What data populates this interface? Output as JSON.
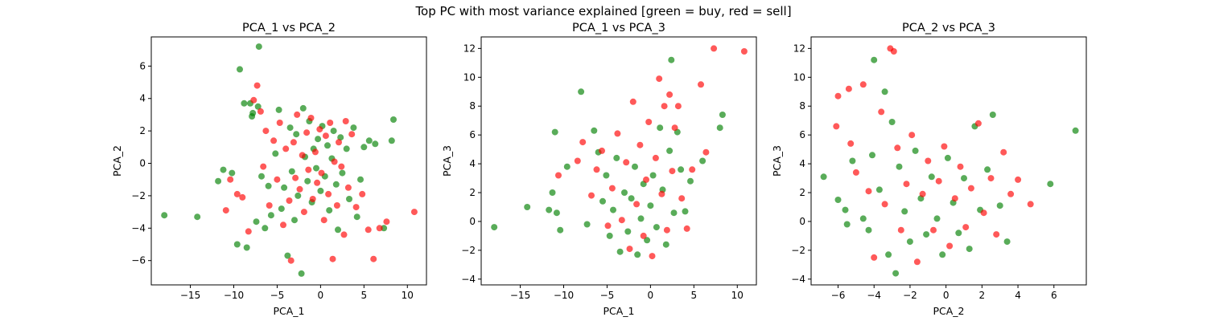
{
  "figure": {
    "suptitle": "Top PC with most variance explained [green = buy, red = sell]"
  },
  "colors": {
    "buy": "#008000",
    "sell": "#ff0000"
  },
  "chart_data": [
    {
      "type": "scatter",
      "title": "PCA_1 vs PCA_2",
      "xlabel": "PCA_1",
      "ylabel": "PCA_2",
      "xlim": [
        -19.5,
        12.2
      ],
      "ylim": [
        -7.5,
        7.8
      ],
      "xticks": [
        -15,
        -10,
        -5,
        0,
        5,
        10
      ],
      "yticks": [
        -6,
        -4,
        -2,
        0,
        2,
        4,
        6
      ],
      "grid": false,
      "series": [
        {
          "color": "#008000",
          "points": [
            [
              -18,
              -3.2
            ],
            [
              -14.2,
              -3.3
            ],
            [
              -11.2,
              -0.4
            ],
            [
              -11.8,
              -1.1
            ],
            [
              -10.2,
              -0.6
            ],
            [
              -9.6,
              -5.0
            ],
            [
              -9.3,
              5.8
            ],
            [
              -8.8,
              3.7
            ],
            [
              -8.1,
              3.7
            ],
            [
              -7.9,
              2.9
            ],
            [
              -7.8,
              3.1
            ],
            [
              -7.1,
              7.2
            ],
            [
              -7.2,
              3.5
            ],
            [
              -6.8,
              -0.8
            ],
            [
              -8.5,
              -5.2
            ],
            [
              -7.4,
              -3.6
            ],
            [
              -6.4,
              -4.0
            ],
            [
              -6.0,
              -1.4
            ],
            [
              -5.7,
              -3.2
            ],
            [
              -5.2,
              0.6
            ],
            [
              -4.8,
              3.3
            ],
            [
              -4.5,
              -2.8
            ],
            [
              -4.2,
              -1.5
            ],
            [
              -3.8,
              -5.7
            ],
            [
              -3.5,
              2.2
            ],
            [
              -3.3,
              -0.5
            ],
            [
              -3.0,
              -3.5
            ],
            [
              -2.8,
              1.8
            ],
            [
              -2.6,
              -2.0
            ],
            [
              -2.2,
              -6.8
            ],
            [
              -2.0,
              3.4
            ],
            [
              -1.8,
              0.4
            ],
            [
              -1.5,
              -1.1
            ],
            [
              -1.3,
              2.6
            ],
            [
              -1.0,
              -2.4
            ],
            [
              -0.8,
              0.9
            ],
            [
              -0.5,
              -0.3
            ],
            [
              -0.3,
              1.5
            ],
            [
              0.0,
              -1.7
            ],
            [
              0.2,
              2.3
            ],
            [
              0.5,
              -0.8
            ],
            [
              0.8,
              1.1
            ],
            [
              1.0,
              -2.9
            ],
            [
              1.3,
              0.3
            ],
            [
              1.5,
              2.0
            ],
            [
              1.8,
              -1.3
            ],
            [
              2.0,
              -4.1
            ],
            [
              2.3,
              1.6
            ],
            [
              2.5,
              -0.6
            ],
            [
              3.0,
              0.9
            ],
            [
              3.3,
              -2.2
            ],
            [
              3.8,
              2.2
            ],
            [
              4.2,
              -3.3
            ],
            [
              4.6,
              -1.0
            ],
            [
              5.0,
              1.0
            ],
            [
              5.6,
              1.4
            ],
            [
              6.3,
              1.2
            ],
            [
              7.3,
              -4.0
            ],
            [
              8.2,
              1.4
            ],
            [
              8.4,
              2.7
            ]
          ]
        },
        {
          "color": "#ff0000",
          "points": [
            [
              -10.9,
              -2.9
            ],
            [
              -10.4,
              -1.0
            ],
            [
              -9.6,
              -1.9
            ],
            [
              -9.0,
              -2.1
            ],
            [
              -8.3,
              -4.2
            ],
            [
              -7.7,
              3.9
            ],
            [
              -7.3,
              4.8
            ],
            [
              -6.9,
              3.2
            ],
            [
              -6.6,
              -0.2
            ],
            [
              -6.3,
              2.0
            ],
            [
              -5.9,
              -2.6
            ],
            [
              -5.4,
              1.4
            ],
            [
              -5.0,
              -1.0
            ],
            [
              -4.7,
              2.5
            ],
            [
              -4.3,
              -3.8
            ],
            [
              -4.0,
              0.9
            ],
            [
              -3.6,
              -2.3
            ],
            [
              -3.4,
              -6.0
            ],
            [
              -3.1,
              1.3
            ],
            [
              -2.9,
              -0.9
            ],
            [
              -2.7,
              3.0
            ],
            [
              -2.4,
              -1.6
            ],
            [
              -2.1,
              0.5
            ],
            [
              -1.9,
              -3.0
            ],
            [
              -1.6,
              1.9
            ],
            [
              -1.4,
              -0.4
            ],
            [
              -1.1,
              2.8
            ],
            [
              -0.9,
              -2.2
            ],
            [
              -0.6,
              0.7
            ],
            [
              -0.4,
              -1.2
            ],
            [
              -0.1,
              2.1
            ],
            [
              0.1,
              -0.6
            ],
            [
              0.4,
              -3.5
            ],
            [
              0.6,
              1.7
            ],
            [
              0.9,
              -1.9
            ],
            [
              1.1,
              2.5
            ],
            [
              1.4,
              -5.9
            ],
            [
              1.6,
              0.1
            ],
            [
              1.9,
              -2.6
            ],
            [
              2.1,
              1.3
            ],
            [
              2.4,
              -0.2
            ],
            [
              2.7,
              -4.4
            ],
            [
              2.9,
              2.6
            ],
            [
              3.2,
              -1.5
            ],
            [
              3.6,
              1.8
            ],
            [
              4.1,
              -2.7
            ],
            [
              4.8,
              -1.9
            ],
            [
              5.5,
              -4.1
            ],
            [
              6.1,
              -5.9
            ],
            [
              6.8,
              -4.0
            ],
            [
              7.6,
              -3.6
            ],
            [
              10.8,
              -3.0
            ]
          ]
        }
      ]
    },
    {
      "type": "scatter",
      "title": "PCA_1 vs PCA_3",
      "xlabel": "PCA_1",
      "ylabel": "PCA_3",
      "xlim": [
        -19.5,
        12.2
      ],
      "ylim": [
        -4.4,
        12.8
      ],
      "xticks": [
        -15,
        -10,
        -5,
        0,
        5,
        10
      ],
      "yticks": [
        -4,
        -2,
        0,
        2,
        4,
        6,
        8,
        10,
        12
      ],
      "grid": false,
      "series": [
        {
          "color": "#008000",
          "points": [
            [
              -18,
              -0.4
            ],
            [
              -14.2,
              1.0
            ],
            [
              -11.7,
              0.8
            ],
            [
              -11.3,
              2.0
            ],
            [
              -11.0,
              6.2
            ],
            [
              -10.8,
              0.6
            ],
            [
              -10.4,
              -0.6
            ],
            [
              -9.6,
              3.8
            ],
            [
              -8.0,
              9.0
            ],
            [
              -7.3,
              -0.2
            ],
            [
              -6.5,
              6.3
            ],
            [
              -6.0,
              4.8
            ],
            [
              -5.5,
              1.4
            ],
            [
              -5.1,
              3.2
            ],
            [
              -4.7,
              -1.0
            ],
            [
              -4.3,
              0.8
            ],
            [
              -3.9,
              4.4
            ],
            [
              -3.5,
              -2.1
            ],
            [
              -3.0,
              2.0
            ],
            [
              -2.6,
              -0.7
            ],
            [
              -2.2,
              1.6
            ],
            [
              -1.8,
              3.8
            ],
            [
              -1.5,
              -2.3
            ],
            [
              -1.1,
              0.2
            ],
            [
              -0.8,
              2.6
            ],
            [
              -0.4,
              -1.3
            ],
            [
              0.0,
              1.1
            ],
            [
              0.3,
              3.2
            ],
            [
              0.7,
              -0.4
            ],
            [
              1.1,
              6.5
            ],
            [
              1.4,
              2.2
            ],
            [
              1.8,
              -1.6
            ],
            [
              2.2,
              4.9
            ],
            [
              2.4,
              11.2
            ],
            [
              2.7,
              0.6
            ],
            [
              3.1,
              6.2
            ],
            [
              3.5,
              3.6
            ],
            [
              4.0,
              0.7
            ],
            [
              4.6,
              2.8
            ],
            [
              6.0,
              4.2
            ],
            [
              8.0,
              6.5
            ],
            [
              8.3,
              7.4
            ]
          ]
        },
        {
          "color": "#ff0000",
          "points": [
            [
              -10.6,
              3.2
            ],
            [
              -8.4,
              4.2
            ],
            [
              -7.8,
              5.5
            ],
            [
              -6.8,
              1.8
            ],
            [
              -6.2,
              3.6
            ],
            [
              -5.6,
              4.9
            ],
            [
              -4.9,
              -0.3
            ],
            [
              -4.4,
              2.3
            ],
            [
              -3.8,
              6.1
            ],
            [
              -3.3,
              0.1
            ],
            [
              -2.8,
              4.1
            ],
            [
              -2.4,
              -1.9
            ],
            [
              -2.0,
              8.3
            ],
            [
              -1.6,
              1.2
            ],
            [
              -1.2,
              5.3
            ],
            [
              -0.8,
              -1.0
            ],
            [
              -0.5,
              2.9
            ],
            [
              -0.2,
              6.9
            ],
            [
              0.2,
              -2.4
            ],
            [
              0.6,
              4.4
            ],
            [
              1.0,
              9.9
            ],
            [
              1.3,
              1.9
            ],
            [
              1.6,
              8.0
            ],
            [
              1.9,
              -0.6
            ],
            [
              2.2,
              8.8
            ],
            [
              2.5,
              3.5
            ],
            [
              2.8,
              6.5
            ],
            [
              3.2,
              8.0
            ],
            [
              3.6,
              1.6
            ],
            [
              4.2,
              -0.5
            ],
            [
              4.8,
              3.6
            ],
            [
              5.8,
              9.5
            ],
            [
              6.4,
              4.8
            ],
            [
              7.3,
              12.0
            ],
            [
              10.8,
              11.8
            ]
          ]
        }
      ]
    },
    {
      "type": "scatter",
      "title": "PCA_2 vs PCA_3",
      "xlabel": "PCA_2",
      "ylabel": "PCA_3",
      "xlim": [
        -7.5,
        7.8
      ],
      "ylim": [
        -4.4,
        12.8
      ],
      "xticks": [
        -6,
        -4,
        -2,
        0,
        2,
        4,
        6
      ],
      "yticks": [
        -4,
        -2,
        0,
        2,
        4,
        6,
        8,
        10,
        12
      ],
      "grid": false,
      "series": [
        {
          "color": "#008000",
          "points": [
            [
              -6.8,
              3.1
            ],
            [
              -6.0,
              1.5
            ],
            [
              -5.6,
              0.8
            ],
            [
              -5.5,
              -0.2
            ],
            [
              -5.2,
              4.2
            ],
            [
              -4.6,
              0.2
            ],
            [
              -4.3,
              -0.6
            ],
            [
              -4.1,
              4.6
            ],
            [
              -4.0,
              11.2
            ],
            [
              -3.7,
              2.2
            ],
            [
              -3.4,
              9.0
            ],
            [
              -3.2,
              -2.3
            ],
            [
              -3.0,
              6.9
            ],
            [
              -2.8,
              -3.6
            ],
            [
              -2.6,
              3.8
            ],
            [
              -2.3,
              0.7
            ],
            [
              -2.0,
              -1.4
            ],
            [
              -1.7,
              4.9
            ],
            [
              -1.4,
              1.6
            ],
            [
              -1.1,
              -0.9
            ],
            [
              -0.8,
              3.1
            ],
            [
              -0.5,
              0.2
            ],
            [
              -0.2,
              -2.3
            ],
            [
              0.1,
              4.4
            ],
            [
              0.4,
              1.3
            ],
            [
              0.7,
              -0.8
            ],
            [
              1.0,
              3.0
            ],
            [
              1.3,
              -1.9
            ],
            [
              1.6,
              6.6
            ],
            [
              1.9,
              0.8
            ],
            [
              2.3,
              3.6
            ],
            [
              2.6,
              7.4
            ],
            [
              3.0,
              1.1
            ],
            [
              3.4,
              -1.4
            ],
            [
              5.8,
              2.6
            ],
            [
              7.2,
              6.3
            ]
          ]
        },
        {
          "color": "#ff0000",
          "points": [
            [
              -6.1,
              6.6
            ],
            [
              -6.0,
              8.7
            ],
            [
              -5.4,
              9.2
            ],
            [
              -5.3,
              5.4
            ],
            [
              -5.0,
              3.4
            ],
            [
              -4.6,
              9.5
            ],
            [
              -4.3,
              2.1
            ],
            [
              -4.0,
              -2.5
            ],
            [
              -3.6,
              7.6
            ],
            [
              -3.4,
              1.2
            ],
            [
              -3.1,
              12.0
            ],
            [
              -2.9,
              11.8
            ],
            [
              -2.7,
              5.1
            ],
            [
              -2.5,
              -0.6
            ],
            [
              -2.2,
              2.6
            ],
            [
              -1.9,
              6.0
            ],
            [
              -1.6,
              -2.8
            ],
            [
              -1.3,
              1.9
            ],
            [
              -1.0,
              4.2
            ],
            [
              -0.7,
              -0.6
            ],
            [
              -0.4,
              2.8
            ],
            [
              -0.1,
              5.2
            ],
            [
              0.2,
              -1.7
            ],
            [
              0.5,
              1.6
            ],
            [
              0.8,
              3.8
            ],
            [
              1.1,
              -0.4
            ],
            [
              1.4,
              2.3
            ],
            [
              1.8,
              6.8
            ],
            [
              2.1,
              0.6
            ],
            [
              2.5,
              3.0
            ],
            [
              2.8,
              -0.9
            ],
            [
              3.2,
              4.8
            ],
            [
              3.6,
              1.9
            ],
            [
              4.0,
              2.9
            ],
            [
              4.7,
              1.2
            ]
          ]
        }
      ]
    }
  ]
}
